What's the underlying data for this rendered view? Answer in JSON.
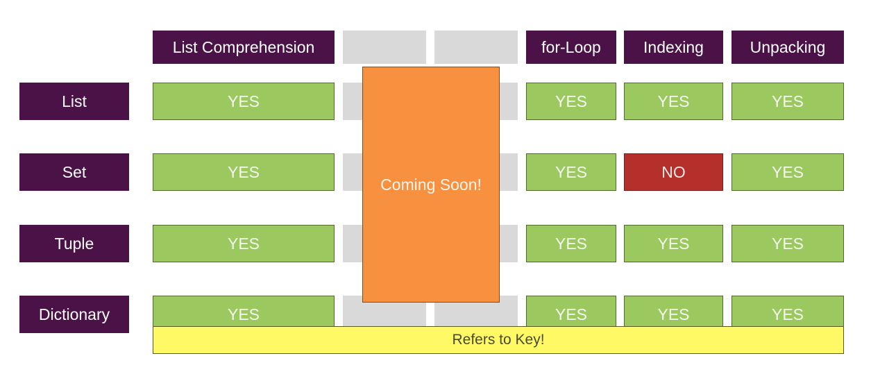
{
  "columns": {
    "list_comprehension": "List Comprehension",
    "for_loop": "for-Loop",
    "indexing": "Indexing",
    "unpacking": "Unpacking"
  },
  "rows": [
    {
      "label": "List",
      "list_comprehension": "YES",
      "for_loop": "YES",
      "indexing": "YES",
      "unpacking": "YES"
    },
    {
      "label": "Set",
      "list_comprehension": "YES",
      "for_loop": "YES",
      "indexing": "NO",
      "unpacking": "YES"
    },
    {
      "label": "Tuple",
      "list_comprehension": "YES",
      "for_loop": "YES",
      "indexing": "YES",
      "unpacking": "YES"
    },
    {
      "label": "Dictionary",
      "list_comprehension": "YES",
      "for_loop": "YES",
      "indexing": "YES",
      "unpacking": "YES"
    }
  ],
  "dictionary_note": "Refers to Key!",
  "overlay_text": "Coming Soon!",
  "colors": {
    "header": "#4b1248",
    "yes": "#9bc960",
    "no": "#b52f2b",
    "placeholder": "#d9d9d9",
    "note": "#fff966",
    "overlay": "#f79140"
  }
}
